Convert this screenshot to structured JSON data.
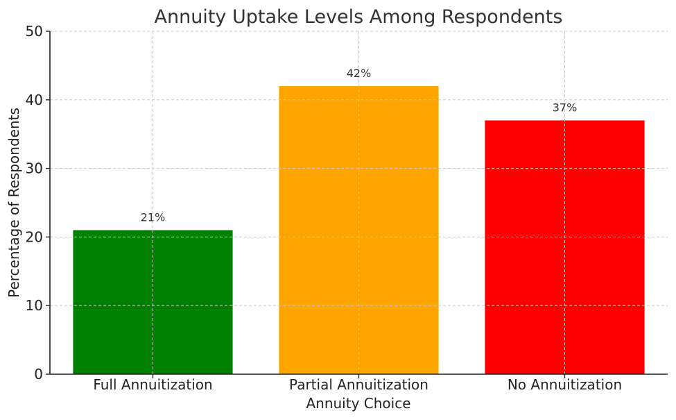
{
  "chart_data": {
    "type": "bar",
    "title": "Annuity Uptake Levels Among Respondents",
    "xlabel": "Annuity Choice",
    "ylabel": "Percentage of Respondents",
    "categories": [
      "Full Annuitization",
      "Partial Annuitization",
      "No Annuitization"
    ],
    "values": [
      21,
      42,
      37
    ],
    "data_labels": [
      "21%",
      "42%",
      "37%"
    ],
    "colors": [
      "#008000",
      "#FFA500",
      "#FF0000"
    ],
    "ylim": [
      0,
      50
    ],
    "yticks": [
      0,
      10,
      20,
      30,
      40,
      50
    ],
    "grid": true
  }
}
